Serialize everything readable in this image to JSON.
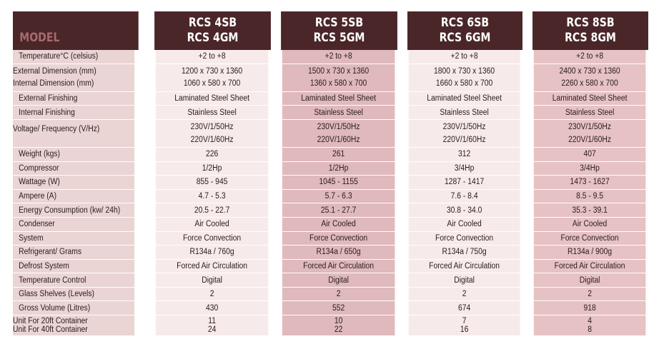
{
  "header": {
    "model_label": "MODEL",
    "models": [
      {
        "line1": "RCS 4SB",
        "line2": "RCS 4GM"
      },
      {
        "line1": "RCS 5SB",
        "line2": "RCS 5GM"
      },
      {
        "line1": "RCS 6SB",
        "line2": "RCS 6GM"
      },
      {
        "line1": "RCS 8SB",
        "line2": "RCS 8GM"
      }
    ]
  },
  "rows": [
    {
      "labels": [
        "Temperature°C (celsius)"
      ],
      "values": [
        [
          "+2 to +8"
        ],
        [
          "+2 to +8"
        ],
        [
          "+2 to +8"
        ],
        [
          "+2 to +8"
        ]
      ]
    },
    {
      "labels": [
        "External Dimension (mm)",
        "Internal Dimension (mm)"
      ],
      "values": [
        [
          "1200 x 730 x 1360",
          "1060 x 580 x 700"
        ],
        [
          "1500 x 730 x 1360",
          "1360 x 580 x 700"
        ],
        [
          "1800 x 730 x 1360",
          "1660 x 580 x 700"
        ],
        [
          "2400 x 730 x 1360",
          "2260 x 580 x 700"
        ]
      ]
    },
    {
      "labels": [
        "External Finishing"
      ],
      "values": [
        [
          "Laminated Steel Sheet"
        ],
        [
          "Laminated Steel Sheet"
        ],
        [
          "Laminated Steel Sheet"
        ],
        [
          "Laminated Steel Sheet"
        ]
      ]
    },
    {
      "labels": [
        "Internal Finishing"
      ],
      "values": [
        [
          "Stainless Steel"
        ],
        [
          "Stainless Steel"
        ],
        [
          "Stainless Steel"
        ],
        [
          "Stainless Steel"
        ]
      ]
    },
    {
      "labels": [
        "Voltage/ Frequency (V/Hz)",
        ""
      ],
      "values": [
        [
          "230V/1/50Hz",
          "220V/1/60Hz"
        ],
        [
          "230V/1/50Hz",
          "220V/1/60Hz"
        ],
        [
          "230V/1/50Hz",
          "220V/1/60Hz"
        ],
        [
          "230V/1/50Hz",
          "220V/1/60Hz"
        ]
      ]
    },
    {
      "labels": [
        "Weight (kgs)"
      ],
      "values": [
        [
          "226"
        ],
        [
          "261"
        ],
        [
          "312"
        ],
        [
          "407"
        ]
      ]
    },
    {
      "labels": [
        "Compressor"
      ],
      "values": [
        [
          "1/2Hp"
        ],
        [
          "1/2Hp"
        ],
        [
          "3/4Hp"
        ],
        [
          "3/4Hp"
        ]
      ]
    },
    {
      "labels": [
        "Wattage (W)"
      ],
      "values": [
        [
          "855 - 945"
        ],
        [
          "1045 - 1155"
        ],
        [
          "1287 - 1417"
        ],
        [
          "1473 - 1627"
        ]
      ]
    },
    {
      "labels": [
        "Ampere (A)"
      ],
      "values": [
        [
          "4.7 - 5.3"
        ],
        [
          "5.7 - 6.3"
        ],
        [
          "7.6 - 8.4"
        ],
        [
          "8.5 - 9.5"
        ]
      ]
    },
    {
      "labels": [
        "Energy Consumption (kw/ 24h)"
      ],
      "values": [
        [
          "20.5 - 22.7"
        ],
        [
          "25.1 - 27.7"
        ],
        [
          "30.8 - 34.0"
        ],
        [
          "35.3 - 39.1"
        ]
      ]
    },
    {
      "labels": [
        "Condenser"
      ],
      "values": [
        [
          "Air Cooled"
        ],
        [
          "Air Cooled"
        ],
        [
          "Air Cooled"
        ],
        [
          "Air Cooled"
        ]
      ]
    },
    {
      "labels": [
        "System"
      ],
      "values": [
        [
          "Force Convection"
        ],
        [
          "Force Convection"
        ],
        [
          "Force Convection"
        ],
        [
          "Force Convection"
        ]
      ]
    },
    {
      "labels": [
        "Refrigerant/ Grams"
      ],
      "values": [
        [
          "R134a / 760g"
        ],
        [
          "R134a / 650g"
        ],
        [
          "R134a / 750g"
        ],
        [
          "R134a / 900g"
        ]
      ]
    },
    {
      "labels": [
        "Defrost System"
      ],
      "values": [
        [
          "Forced Air Circulation"
        ],
        [
          "Forced Air Circulation"
        ],
        [
          "Forced Air Circulation"
        ],
        [
          "Forced Air Circulation"
        ]
      ]
    },
    {
      "labels": [
        "Temperature Control"
      ],
      "values": [
        [
          "Digital"
        ],
        [
          "Digital"
        ],
        [
          "Digital"
        ],
        [
          "Digital"
        ]
      ]
    },
    {
      "labels": [
        "Glass Shelves (Levels)"
      ],
      "values": [
        [
          "2"
        ],
        [
          "2"
        ],
        [
          "2"
        ],
        [
          "2"
        ]
      ]
    },
    {
      "labels": [
        "Gross Volume (Litres)"
      ],
      "values": [
        [
          "430"
        ],
        [
          "552"
        ],
        [
          "674"
        ],
        [
          "918"
        ]
      ]
    },
    {
      "labels": [
        "Unit For 20ft Container",
        "Unit For 40ft Container"
      ],
      "values": [
        [
          "11",
          "24"
        ],
        [
          "10",
          "22"
        ],
        [
          "7",
          "16"
        ],
        [
          "4",
          "8"
        ]
      ]
    }
  ]
}
